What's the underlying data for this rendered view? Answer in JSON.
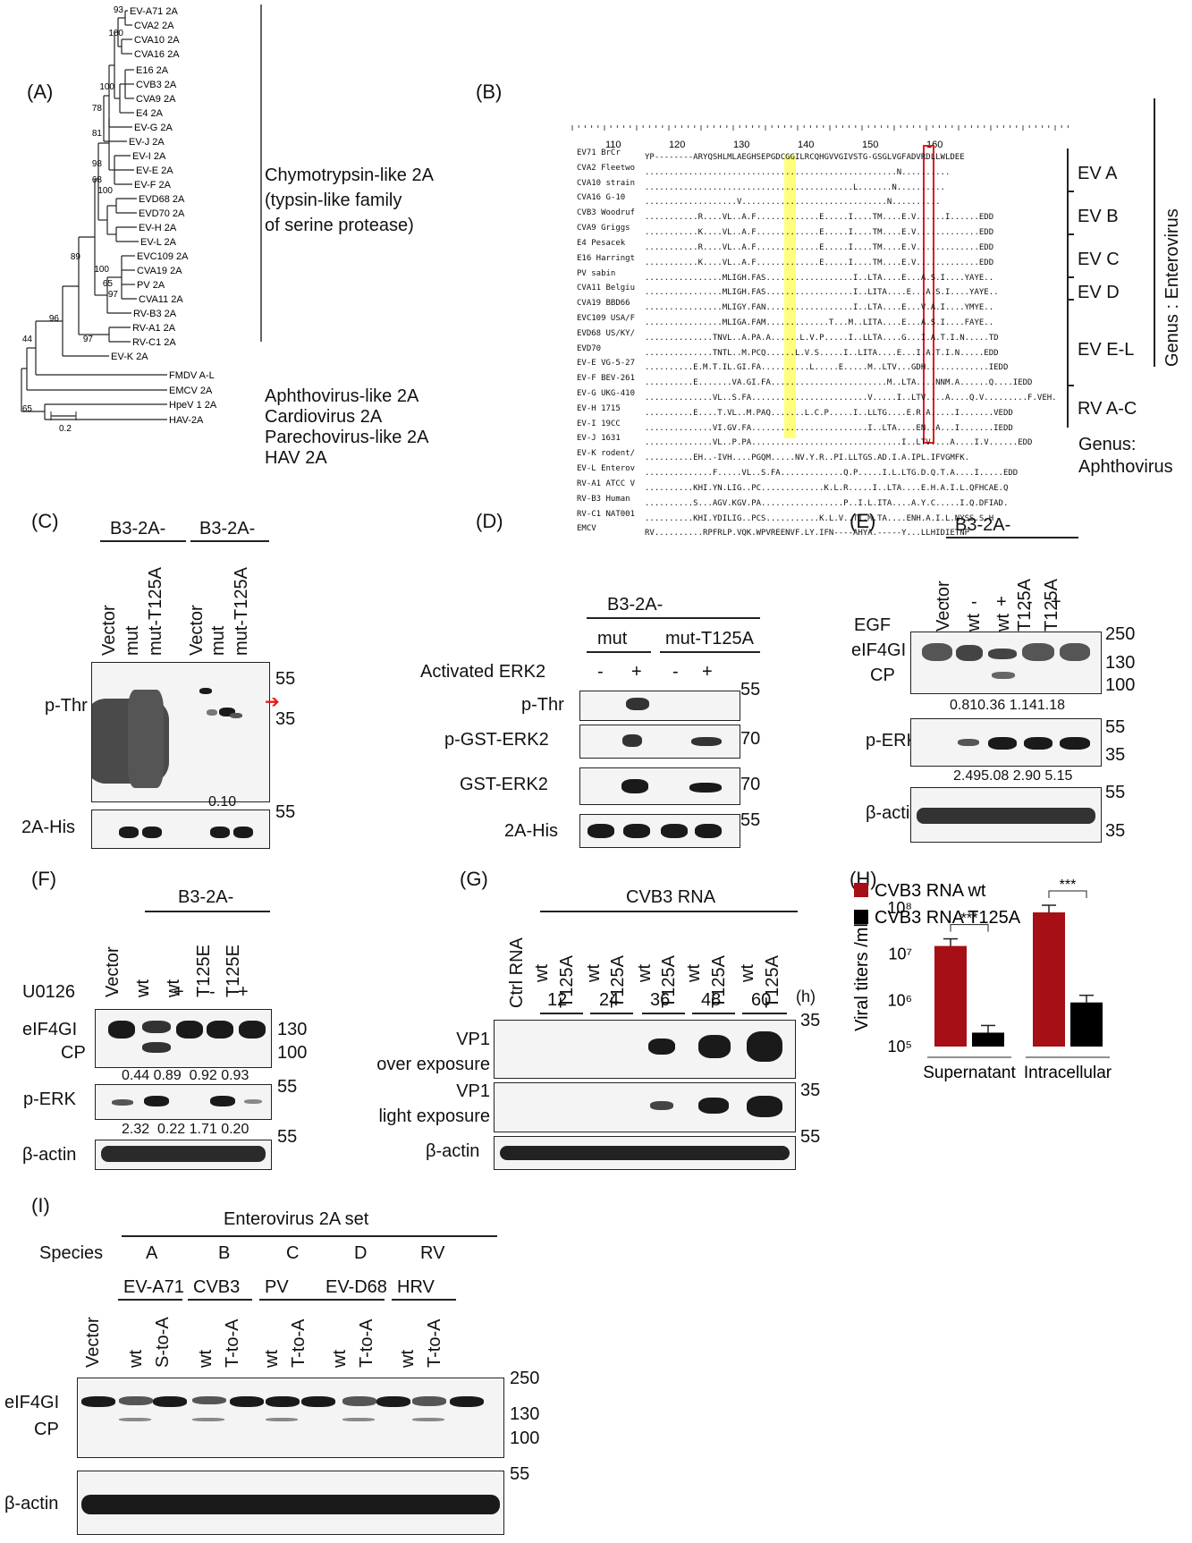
{
  "panels": {
    "A": "(A)",
    "B": "(B)",
    "C": "(C)",
    "D": "(D)",
    "E": "(E)",
    "F": "(F)",
    "G": "(G)",
    "H": "(H)",
    "I": "(I)"
  },
  "panel_a": {
    "taxa": [
      "EV-A71 2A",
      "CVA2 2A",
      "CVA10 2A",
      "CVA16 2A",
      "E16 2A",
      "CVB3 2A",
      "CVA9 2A",
      "E4 2A",
      "EV-G 2A",
      "EV-J 2A",
      "EV-I 2A",
      "EV-E 2A",
      "EV-F 2A",
      "EVD68 2A",
      "EVD70 2A",
      "EV-H 2A",
      "EV-L 2A",
      "EVC109 2A",
      "CVA19 2A",
      "PV 2A",
      "CVA11 2A",
      "RV-B3 2A",
      "RV-A1 2A",
      "RV-C1 2A",
      "EV-K 2A",
      "FMDV A-L",
      "EMCV 2A",
      "HpeV 1 2A",
      "HAV-2A"
    ],
    "bootstrap": [
      "93",
      "100",
      "100",
      "78",
      "81",
      "98",
      "68",
      "100",
      "89",
      "100",
      "65",
      "97",
      "96",
      "97",
      "44",
      "65"
    ],
    "scale": "0.2",
    "group_labels": [
      "Chymotrypsin-like 2A",
      "(typsin-like family",
      "of serine protease)",
      "Aphthovirus-like 2A",
      "Cardiovirus 2A",
      "Parechovirus-like 2A",
      "HAV 2A"
    ]
  },
  "panel_b": {
    "ruler": [
      "110",
      "120",
      "130",
      "140",
      "150",
      "160"
    ],
    "rows": [
      {
        "name": "EV71 BrCr",
        "seq": "YP--------ARYQSHLMLAEGHSEPGDCGGILRCQHGVVGIVSTG-GSGLVGFADVRDLLWLDEE"
      },
      {
        "name": "CVA2 Fleetwo",
        "seq": "....................................................N.........."
      },
      {
        "name": "CVA10 strain",
        "seq": "...........................................L.......N.........."
      },
      {
        "name": "CVA16 G-10",
        "seq": "...................V..............................N.........."
      },
      {
        "name": "CVB3 Woodruf",
        "seq": "...........R....VL..A.F.............E.....I....TM....E.V......I......EDD"
      },
      {
        "name": "CVA9 Griggs",
        "seq": "...........K....VL..A.F.............E.....I....TM....E.V.............EDD"
      },
      {
        "name": "E4 Pesacek",
        "seq": "...........R....VL..A.F.............E.....I....TM....E.V.............EDD"
      },
      {
        "name": "E16 Harringt",
        "seq": "...........K....VL..A.F.............E.....I....TM....E.V.............EDD"
      },
      {
        "name": "PV sabin",
        "seq": "................MLIGH.FAS..................I..LTA....E...A.S.I....YAYE.."
      },
      {
        "name": "CVA11 Belgiu",
        "seq": "................MLIGH.FAS..................I..LITA....E...A.S.I....YAYE.."
      },
      {
        "name": "CVA19 BBD66",
        "seq": "................MLIGY.FAN..................I..LTA....E...V.A.I....YMYE.."
      },
      {
        "name": "EVC109 USA/F",
        "seq": "................MLIGA.FAM.............T...M..LITA....E...A.S.I....FAYE.."
      },
      {
        "name": "EVD68 US/KY/",
        "seq": "..............TNVL..A.PA.A......L.V.P.....I..LLTA....G...I.A.T.I.N.....TD"
      },
      {
        "name": "EVD70",
        "seq": "..............TNTL..M.PCQ......L.V.S.....I..LITA....E...I.A.T.I.N.....EDD"
      },
      {
        "name": "EV-E VG-5-27",
        "seq": "..........E.M.T.IL.GI.FA..........L.....E.....M..LTV...GDH.............IEDD"
      },
      {
        "name": "EV-F BEV-261",
        "seq": "..........E.......VA.GI.FA........................M..LTA....NNM.A......Q....IEDD"
      },
      {
        "name": "EV-G UKG-410",
        "seq": "..............VL..S.FA........................V.....I..LTV....A....Q.V.........F.VEH."
      },
      {
        "name": "EV-H 1715",
        "seq": "..........E....T.VL..M.PAQ.......L.C.P.....I..LLTG....E.R.A.....I.......VEDD"
      },
      {
        "name": "EV-I 19CC",
        "seq": "..............VI.GV.FA........................I..LTA....EN..A...I.......IEDD"
      },
      {
        "name": "EV-J 1631",
        "seq": "..............VL..P.PA...............................I..LTV....A....I.V......EDD"
      },
      {
        "name": "EV-K rodent/",
        "seq": "..........EH..-IVH....PGQM.....NV.Y.R..PI.LLTGS.AD.I.A.IPL.IFVGMFK."
      },
      {
        "name": "EV-L Enterov",
        "seq": "..............F.....VL..S.FA.............Q.P.....I.L.LTG.D.Q.T.A....I.....EDD"
      },
      {
        "name": "RV-A1 ATCC V",
        "seq": "..........KHI.YN.LIG..PC.............K.L.R.....I..LTA....E.H.A.I.L.QFHCAE.Q"
      },
      {
        "name": "RV-B3 Human",
        "seq": "..........S...AGV.KGV.PA.................P..I.L.ITA....A.Y.C.....I.Q.DFIAD."
      },
      {
        "name": "RV-C1 NAT001",
        "seq": "..........KHI.YDILIG..PCS...........K.L.V..TI.M.TA....ENH.A.I.L.NYSS.S.H"
      },
      {
        "name": "EMCV",
        "seq": "RV..........RPFRLP.VQK.WPVREENVF.LY.IFN----AHYA.-----Y...LLHIDIETNP"
      }
    ],
    "groups": [
      "EV A",
      "EV B",
      "EV C",
      "EV D",
      "EV E-L",
      "RV A-C"
    ],
    "genus_enterovirus": "Genus : Enterovirus",
    "genus_aphthovirus": "Genus:\nAphthovirus"
  },
  "panel_c": {
    "header": "B3-2A-",
    "lanes": [
      "Vector",
      "mut",
      "mut-T125A",
      "Vector",
      "mut",
      "mut-T125A"
    ],
    "row_labels": [
      "p-Thr",
      "2A-His"
    ],
    "markers": [
      "55",
      "35",
      "55"
    ],
    "quant": "0.10"
  },
  "panel_d": {
    "header": "B3-2A-",
    "groups": [
      "mut",
      "mut-T125A"
    ],
    "treatment": "Activated ERK2",
    "signs": [
      "-",
      "+",
      "-",
      "+"
    ],
    "row_labels": [
      "p-Thr",
      "p-GST-ERK2",
      "GST-ERK2",
      "2A-His"
    ],
    "markers": [
      "55",
      "70",
      "70",
      "55"
    ]
  },
  "panel_e": {
    "header": "B3-2A-",
    "lanes": [
      "Vector",
      "wt",
      "wt",
      "T125A",
      "T125A"
    ],
    "egf_label": "EGF",
    "signs": [
      "-",
      "-",
      "+",
      "-",
      "+"
    ],
    "row_labels": [
      "eIF4GI",
      "CP",
      "p-ERK",
      "β-actin"
    ],
    "markers": [
      "250",
      "130",
      "100",
      "55",
      "35",
      "55",
      "35"
    ],
    "quant_eif": "0.810.36 1.141.18",
    "quant_erk": "2.495.08 2.90 5.15"
  },
  "panel_f": {
    "header": "B3-2A-",
    "lanes": [
      "Vector",
      "wt",
      "wt",
      "T125E",
      "T125E"
    ],
    "treatment": "U0126",
    "signs": [
      "-",
      "-",
      "+",
      "-",
      "+"
    ],
    "row_labels": [
      "eIF4GI",
      "CP",
      "p-ERK",
      "β-actin"
    ],
    "markers": [
      "130",
      "100",
      "55",
      "55"
    ],
    "quant_eif": "0.44 0.89  0.92 0.93",
    "quant_erk": "2.32  0.22 1.71 0.20"
  },
  "panel_g": {
    "header": "CVB3 RNA",
    "lanes": [
      "Ctrl RNA",
      "wt",
      "T125A",
      "wt",
      "T125A",
      "wt",
      "T125A",
      "wt",
      "T125A",
      "wt",
      "T125A"
    ],
    "timepoints": [
      "12",
      "24",
      "36",
      "48",
      "60"
    ],
    "unit": "(h)",
    "row_labels": [
      "VP1\nover exposure",
      "VP1\nlight exposure",
      "β-actin"
    ],
    "markers": [
      "35",
      "35",
      "55"
    ]
  },
  "panel_h": {
    "legend": [
      "CVB3 RNA wt",
      "CVB3 RNA T125A"
    ],
    "ylabel": "Viral titers /ml",
    "categories": [
      "Supernatant",
      "Intracellular"
    ],
    "significance": [
      "***",
      "***"
    ]
  },
  "chart_data": {
    "type": "bar",
    "categories": [
      "Supernatant",
      "Intracellular"
    ],
    "series": [
      {
        "name": "CVB3 RNA wt",
        "values": [
          15000000,
          80000000
        ],
        "color": "#a50f15"
      },
      {
        "name": "CVB3 RNA T125A",
        "values": [
          200000,
          900000
        ],
        "color": "#000000"
      }
    ],
    "ylabel": "Viral titers /ml",
    "yscale": "log",
    "yticks": [
      "10⁵",
      "10⁶",
      "10⁷",
      "10⁸"
    ],
    "ylim": [
      100000,
      100000000
    ],
    "legend": "top-left"
  },
  "panel_i": {
    "header": "Enterovirus 2A set",
    "species_label": "Species",
    "species": [
      "A",
      "B",
      "C",
      "D",
      "RV"
    ],
    "viruses": [
      "EV-A71",
      "CVB3",
      "PV",
      "EV-D68",
      "HRV"
    ],
    "lanes": [
      "Vector",
      "wt",
      "S-to-A",
      "wt",
      "T-to-A",
      "wt",
      "T-to-A",
      "wt",
      "T-to-A",
      "wt",
      "T-to-A"
    ],
    "row_labels": [
      "eIF4GI",
      "CP",
      "β-actin"
    ],
    "markers": [
      "250",
      "130",
      "100",
      "55"
    ]
  },
  "colors": {
    "wt_bar": "#a50f15",
    "mut_bar": "#000000",
    "arrow": "#e41a1c",
    "highlight_yellow": "#ffff66",
    "highlight_red": "#e41a1c"
  }
}
